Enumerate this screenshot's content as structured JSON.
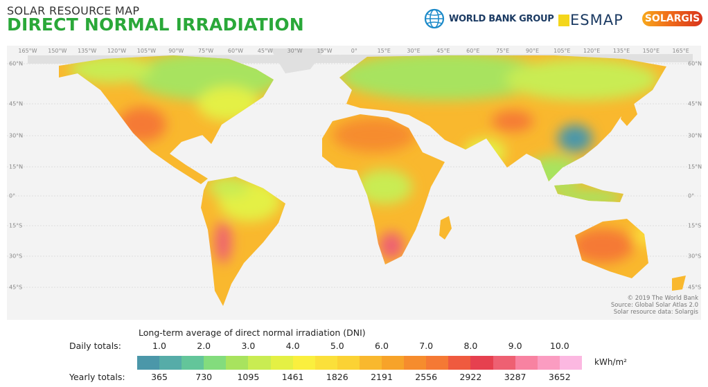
{
  "header": {
    "subtitle": "SOLAR RESOURCE MAP",
    "title": "DIRECT NORMAL IRRADIATION",
    "logos": {
      "world_bank": "WORLD BANK GROUP",
      "esmap": "ESMAP",
      "solargis": "SOLARGIS"
    }
  },
  "map": {
    "longitude_labels": [
      "165°W",
      "150°W",
      "135°W",
      "120°W",
      "105°W",
      "90°W",
      "75°W",
      "60°W",
      "45°W",
      "30°W",
      "15°W",
      "0°",
      "15°E",
      "30°E",
      "45°E",
      "60°E",
      "75°E",
      "90°E",
      "105°E",
      "120°E",
      "135°E",
      "150°E",
      "165°E"
    ],
    "latitude_labels": [
      "60°N",
      "45°N",
      "30°N",
      "15°N",
      "0°",
      "15°S",
      "30°S",
      "45°S"
    ],
    "credit": [
      "© 2019 The World Bank",
      "Source: Global Solar Atlas 2.0",
      "Solar resource data: Solargis"
    ]
  },
  "legend": {
    "title": "Long-term average of direct normal irradiation (DNI)",
    "daily_label": "Daily totals:",
    "yearly_label": "Yearly totals:",
    "daily_values": [
      "1.0",
      "2.0",
      "3.0",
      "4.0",
      "5.0",
      "6.0",
      "7.0",
      "8.0",
      "9.0",
      "10.0"
    ],
    "yearly_values": [
      "365",
      "730",
      "1095",
      "1461",
      "1826",
      "2191",
      "2556",
      "2922",
      "3287",
      "3652"
    ],
    "unit": "kWh/m²",
    "colors": [
      "#4b97a9",
      "#56aca8",
      "#63c59a",
      "#83dc7d",
      "#a8e35e",
      "#c9ec52",
      "#e4f044",
      "#faef3e",
      "#fbe03a",
      "#fbd234",
      "#f9b82e",
      "#f7a329",
      "#f68c2d",
      "#f57934",
      "#ef5a3f",
      "#e6404f",
      "#ee6072",
      "#f882a1",
      "#fb9cc1",
      "#fcb8e1"
    ]
  }
}
